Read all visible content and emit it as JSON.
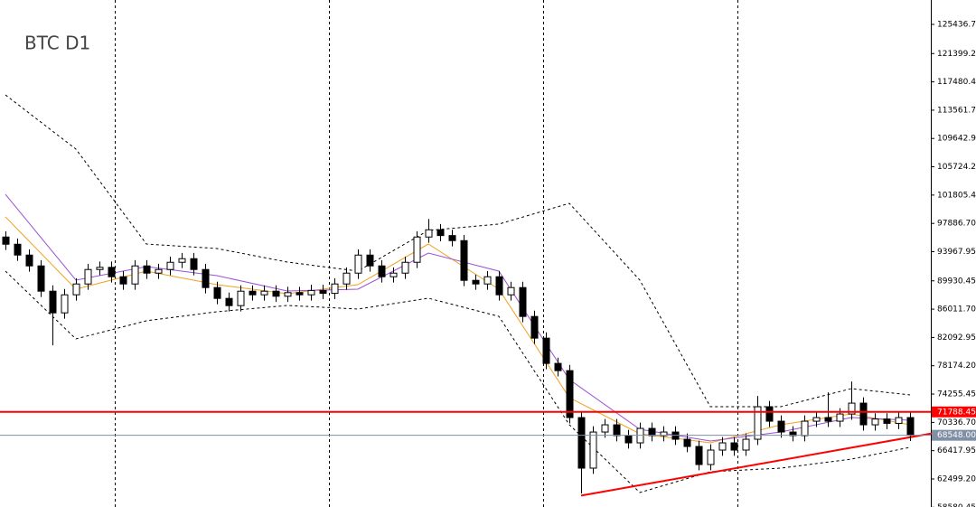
{
  "chart_data": {
    "type": "candlestick",
    "title": "BTC D1",
    "ylim": [
      58620,
      128815
    ],
    "yticks": [
      {
        "value": 125436.7,
        "label": "125436.70"
      },
      {
        "value": 121399.2,
        "label": "121399.20"
      },
      {
        "value": 117480.45,
        "label": "117480.45"
      },
      {
        "value": 113561.7,
        "label": "113561.70"
      },
      {
        "value": 109642.95,
        "label": "109642.95"
      },
      {
        "value": 105724.2,
        "label": "105724.20"
      },
      {
        "value": 101805.45,
        "label": "101805.45"
      },
      {
        "value": 97886.7,
        "label": "97886.70"
      },
      {
        "value": 93967.95,
        "label": "93967.95"
      },
      {
        "value": 89930.45,
        "label": "89930.45"
      },
      {
        "value": 86011.7,
        "label": "86011.70"
      },
      {
        "value": 82092.95,
        "label": "82092.95"
      },
      {
        "value": 78174.2,
        "label": "78174.20"
      },
      {
        "value": 74255.45,
        "label": "74255.45"
      },
      {
        "value": 70336.7,
        "label": "70336.70"
      },
      {
        "value": 66417.95,
        "label": "66417.95"
      },
      {
        "value": 62499.2,
        "label": "62499.20"
      },
      {
        "value": 58580.45,
        "label": "58580.45"
      }
    ],
    "up_color": "#ffffff",
    "down_color": "#000000",
    "open": [
      96000,
      95000,
      93500,
      92000,
      88500,
      85500,
      88000,
      89500,
      91500,
      91800,
      90500,
      89500,
      92000,
      91000,
      91500,
      92500,
      93000,
      91500,
      89000,
      87500,
      86500,
      88500,
      88000,
      88500,
      87800,
      88300,
      88000,
      88600,
      88200,
      89500,
      91000,
      93500,
      92000,
      90500,
      91000,
      92500,
      96000,
      97000,
      96200,
      95500,
      90000,
      89500,
      90500,
      88000,
      89000,
      85000,
      82000,
      78500,
      77500,
      71000,
      64000,
      69000,
      70000,
      68500,
      67500,
      69500,
      68500,
      69000,
      68000,
      67000,
      64500,
      66500,
      67500,
      66500,
      68000,
      72500,
      70500,
      69000,
      68500,
      70500,
      71000,
      70500,
      71500,
      73000,
      70000,
      70800,
      70200,
      71000
    ],
    "high": [
      96800,
      95800,
      94300,
      92800,
      89300,
      88800,
      90300,
      92300,
      92600,
      92600,
      91300,
      92800,
      92800,
      92300,
      93300,
      93800,
      93800,
      92300,
      89800,
      88300,
      89300,
      89300,
      89300,
      89300,
      89100,
      89100,
      89400,
      89400,
      90300,
      91800,
      94300,
      94300,
      92800,
      91800,
      93300,
      96800,
      98500,
      97800,
      97000,
      96300,
      90800,
      91300,
      91300,
      89800,
      89800,
      85800,
      82800,
      79300,
      78300,
      71800,
      69800,
      70800,
      70800,
      69300,
      70300,
      70300,
      69800,
      69800,
      68800,
      67800,
      67300,
      68300,
      68300,
      68800,
      74000,
      73300,
      71300,
      69800,
      71300,
      71800,
      74500,
      72300,
      76000,
      73800,
      71600,
      71600,
      71800,
      71800
    ],
    "low": [
      94200,
      92700,
      91200,
      87700,
      81000,
      84700,
      87200,
      88700,
      90700,
      89700,
      88700,
      88700,
      90200,
      90200,
      90700,
      91700,
      90700,
      88200,
      86700,
      85700,
      85700,
      87200,
      87200,
      87000,
      87000,
      87200,
      87200,
      87400,
      87400,
      88700,
      90200,
      91200,
      89700,
      89700,
      90200,
      91700,
      95200,
      95400,
      94700,
      89200,
      88700,
      88700,
      87200,
      87200,
      84200,
      81200,
      77700,
      76700,
      70200,
      60500,
      63200,
      68200,
      67700,
      66700,
      66700,
      67700,
      67700,
      67200,
      66200,
      63700,
      63700,
      65700,
      65700,
      65700,
      67200,
      69700,
      68200,
      67700,
      67700,
      69700,
      69700,
      69700,
      70700,
      69200,
      69200,
      69400,
      69400,
      67748
    ],
    "close": [
      95000,
      93500,
      92000,
      88500,
      85500,
      88000,
      89500,
      91500,
      91800,
      90500,
      89500,
      92000,
      91000,
      91500,
      92500,
      93000,
      91500,
      89000,
      87500,
      86500,
      88500,
      88000,
      88500,
      87800,
      88300,
      88000,
      88600,
      88200,
      89500,
      91000,
      93500,
      92000,
      90500,
      91000,
      92500,
      96000,
      97000,
      96200,
      95500,
      90000,
      89500,
      90500,
      88000,
      89000,
      85000,
      82000,
      78500,
      77500,
      71000,
      64000,
      69000,
      70000,
      68500,
      67500,
      69500,
      68500,
      69000,
      68000,
      67000,
      64500,
      66500,
      67500,
      66500,
      68000,
      72500,
      70500,
      69000,
      68500,
      70500,
      71000,
      70500,
      71500,
      73000,
      70000,
      70800,
      70200,
      71000,
      68548
    ],
    "overlays": [
      {
        "color": "#000000",
        "dashed": true,
        "x": [
          0,
          6,
          12,
          18,
          24,
          30,
          36,
          42,
          48,
          54,
          60,
          66,
          72,
          77
        ],
        "values": [
          115680,
          108170,
          95030,
          94410,
          92530,
          91280,
          96910,
          97790,
          100660,
          90030,
          72510,
          72510,
          75010,
          74140
        ]
      },
      {
        "color": "#000000",
        "dashed": true,
        "x": [
          0,
          6,
          12,
          18,
          24,
          30,
          36,
          42,
          48,
          54,
          60,
          66,
          72,
          77
        ],
        "values": [
          91280,
          81895,
          84400,
          85650,
          86525,
          86025,
          87525,
          85020,
          70010,
          60625,
          63500,
          64000,
          65250,
          66880
        ]
      },
      {
        "color": "#f0a020",
        "dashed": false,
        "x": [
          0,
          6,
          12,
          18,
          24,
          30,
          36,
          42,
          48,
          54,
          60,
          66,
          72,
          77
        ],
        "values": [
          98790,
          88780,
          91280,
          89400,
          88150,
          89400,
          95030,
          88780,
          73760,
          68760,
          67510,
          70010,
          71510,
          70010
        ]
      },
      {
        "color": "#9b4fd6",
        "dashed": false,
        "x": [
          0,
          6,
          12,
          18,
          24,
          30,
          36,
          42,
          48,
          54,
          60,
          66,
          72,
          77
        ],
        "values": [
          101910,
          90030,
          91900,
          90650,
          88530,
          88780,
          93780,
          91280,
          76260,
          69380,
          67760,
          69010,
          71010,
          70635
        ]
      },
      {
        "color": "#ff0000",
        "dashed": false,
        "x": [
          49,
          79
        ],
        "values": [
          60200,
          68850
        ]
      }
    ],
    "hlines": [
      {
        "value": 71788.45,
        "label": "71788.45",
        "color": "#ff0000",
        "text_color": "#ffffff"
      },
      {
        "value": 68548,
        "label": "68548.00",
        "color": "#7f8fa6",
        "text_color": "#ffffff"
      }
    ]
  }
}
